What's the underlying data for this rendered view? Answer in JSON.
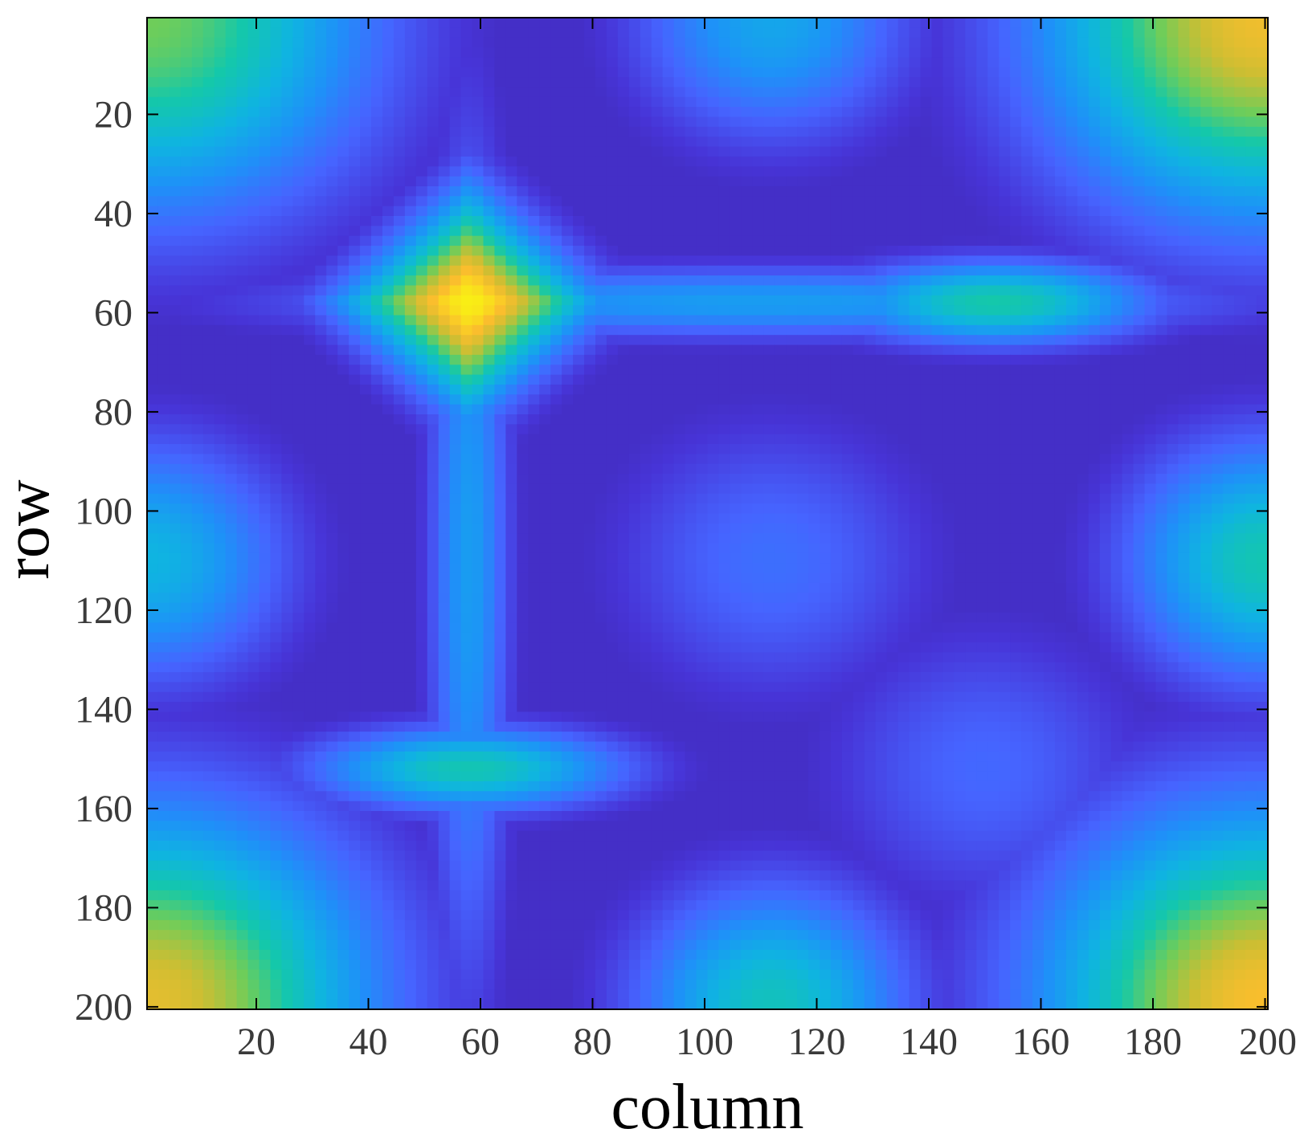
{
  "chart_data": {
    "type": "heatmap",
    "title": "",
    "xlabel": "column",
    "ylabel": "row",
    "xlim": [
      1,
      200
    ],
    "ylim": [
      1,
      200
    ],
    "y_direction": "reversed",
    "colormap": "parula",
    "colorbar": false,
    "grid": false,
    "xticks": [
      20,
      40,
      60,
      80,
      100,
      120,
      140,
      160,
      180,
      200
    ],
    "yticks": [
      20,
      40,
      60,
      80,
      100,
      120,
      140,
      160,
      180,
      200
    ],
    "xtick_labels": [
      "20",
      "40",
      "60",
      "80",
      "100",
      "120",
      "140",
      "160",
      "180",
      "200"
    ],
    "ytick_labels": [
      "20",
      "40",
      "60",
      "80",
      "100",
      "120",
      "140",
      "160",
      "180",
      "200"
    ],
    "features": [
      {
        "kind": "diamond-peak",
        "column": 58,
        "row": 58,
        "level": 0.98
      },
      {
        "kind": "ridge-peak",
        "column": 152,
        "row": 58,
        "level": 0.62
      },
      {
        "kind": "ridge-peak",
        "column": 58,
        "row": 152,
        "level": 0.6
      },
      {
        "kind": "shallow-bump",
        "column": 112,
        "row": 110,
        "level": 0.28
      },
      {
        "kind": "shallow-bump",
        "column": 150,
        "row": 152,
        "level": 0.26
      },
      {
        "kind": "corner-peak",
        "column": 200,
        "row": 1,
        "level": 0.88
      },
      {
        "kind": "corner-peak",
        "column": 200,
        "row": 200,
        "level": 0.9
      },
      {
        "kind": "corner-peak",
        "column": 1,
        "row": 200,
        "level": 0.86
      },
      {
        "kind": "corner-peak",
        "column": 1,
        "row": 1,
        "level": 0.72
      },
      {
        "kind": "edge-bump",
        "column": 1,
        "row": 110,
        "level": 0.5
      },
      {
        "kind": "edge-bump",
        "column": 200,
        "row": 110,
        "level": 0.6
      },
      {
        "kind": "edge-bump",
        "column": 112,
        "row": 1,
        "level": 0.45
      },
      {
        "kind": "edge-bump",
        "column": 112,
        "row": 200,
        "level": 0.58
      }
    ]
  }
}
